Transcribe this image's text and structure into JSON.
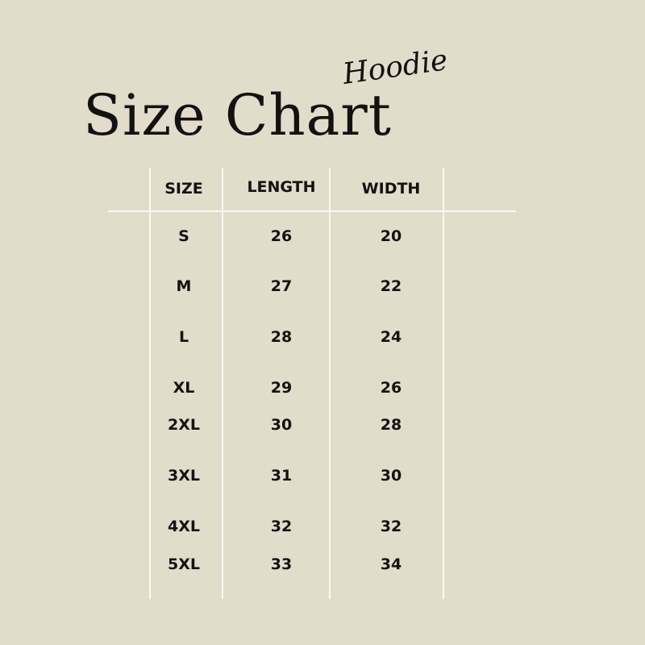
{
  "subtitle": "Hoodie",
  "title": "Size Chart",
  "table": {
    "headers": [
      "SIZE",
      "LENGTH",
      "WIDTH"
    ],
    "rows": [
      [
        "S",
        "26",
        "20"
      ],
      [
        "M",
        "27",
        "22"
      ],
      [
        "L",
        "28",
        "24"
      ],
      [
        "XL",
        "29",
        "26"
      ],
      [
        "2XL",
        "30",
        "28"
      ],
      [
        "3XL",
        "31",
        "30"
      ],
      [
        "4XL",
        "32",
        "32"
      ],
      [
        "5XL",
        "33",
        "34"
      ]
    ]
  },
  "colors": {
    "background": "#e2dccb",
    "text": "#141210",
    "lines": "#fbf9f4"
  }
}
